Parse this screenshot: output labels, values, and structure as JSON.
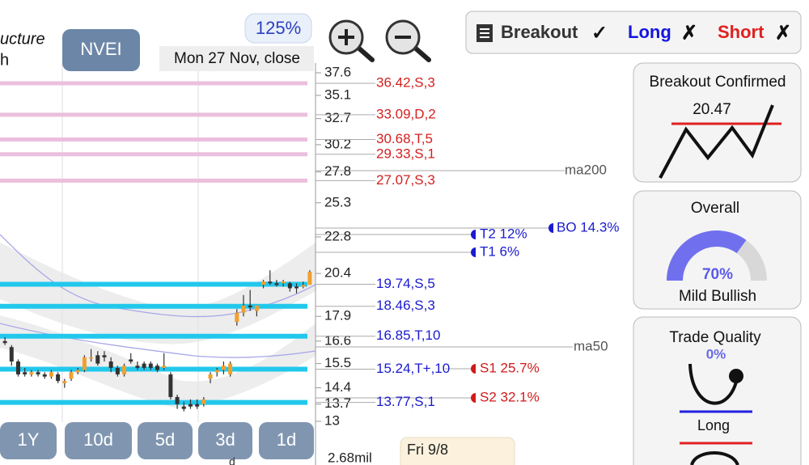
{
  "header": {
    "title_fragment": "ucture",
    "subtitle_fragment": "h",
    "symbol": "NVEI",
    "zoom": "125%",
    "date": "Mon 27 Nov, close"
  },
  "toolbar": {
    "breakout": "Breakout",
    "breakout_mark": "✓",
    "long": "Long",
    "long_mark": "✗",
    "short": "Short",
    "short_mark": "✗"
  },
  "price_axis": {
    "scale": "log",
    "ylim": [
      13,
      37.6
    ],
    "yticks": [
      37.6,
      35.1,
      32.7,
      30.2,
      27.8,
      25.3,
      22.8,
      20.4,
      17.9,
      16.6,
      15.5,
      14.4,
      13.7,
      13
    ]
  },
  "levels": [
    {
      "value": 36.42,
      "label": "36.42,S,3",
      "kind": "resistance"
    },
    {
      "value": 33.09,
      "label": "33.09,D,2",
      "kind": "resistance"
    },
    {
      "value": 30.68,
      "label": "30.68,T,5",
      "kind": "resistance"
    },
    {
      "value": 29.33,
      "label": "29.33,S,1",
      "kind": "resistance"
    },
    {
      "value": 27.07,
      "label": "27.07,S,3",
      "kind": "resistance"
    },
    {
      "value": 19.74,
      "label": "19.74,S,5",
      "kind": "support"
    },
    {
      "value": 18.46,
      "label": "18.46,S,3",
      "kind": "support"
    },
    {
      "value": 16.85,
      "label": "16.85,T,10",
      "kind": "support"
    },
    {
      "value": 15.24,
      "label": "15.24,T+,10",
      "kind": "support"
    },
    {
      "value": 13.77,
      "label": "13.77,S,1",
      "kind": "support"
    }
  ],
  "annotations": {
    "ma200": "ma200",
    "ma50": "ma50",
    "t2": "T2 12%",
    "t1": "T1 6%",
    "bo": "BO 14.3%",
    "s1": "S1 25.7%",
    "s2": "S2 32.1%"
  },
  "candles": [
    [
      16.6,
      16.8,
      16.4,
      16.5
    ],
    [
      16.3,
      16.4,
      15.4,
      15.6
    ],
    [
      15.6,
      15.7,
      14.9,
      15.0
    ],
    [
      15.1,
      15.3,
      14.9,
      15.0
    ],
    [
      15.0,
      15.2,
      14.9,
      15.1
    ],
    [
      15.1,
      15.2,
      14.9,
      15.0
    ],
    [
      15.0,
      15.1,
      14.8,
      14.9
    ],
    [
      14.9,
      15.2,
      14.8,
      15.1
    ],
    [
      15.0,
      15.1,
      14.6,
      14.7
    ],
    [
      14.6,
      14.8,
      14.4,
      14.7
    ],
    [
      14.8,
      15.2,
      14.7,
      15.1
    ],
    [
      15.1,
      15.3,
      15.0,
      15.2
    ],
    [
      15.2,
      15.9,
      15.1,
      15.8
    ],
    [
      15.8,
      16.2,
      15.6,
      15.8
    ],
    [
      15.9,
      16.1,
      15.4,
      15.5
    ],
    [
      15.9,
      16.1,
      15.6,
      15.8
    ],
    [
      15.6,
      15.8,
      15.1,
      15.3
    ],
    [
      15.3,
      15.4,
      14.9,
      15.0
    ],
    [
      15.0,
      15.5,
      14.9,
      15.4
    ],
    [
      15.7,
      16.0,
      15.5,
      15.6
    ],
    [
      15.4,
      15.6,
      15.2,
      15.3
    ],
    [
      15.5,
      15.6,
      15.2,
      15.3
    ],
    [
      15.5,
      15.6,
      15.2,
      15.3
    ],
    [
      15.4,
      15.5,
      15.1,
      15.2
    ],
    [
      15.3,
      16.0,
      15.2,
      15.4
    ],
    [
      15.0,
      15.1,
      13.9,
      14.0
    ],
    [
      14.0,
      14.1,
      13.5,
      13.7
    ],
    [
      13.6,
      13.8,
      13.4,
      13.5
    ],
    [
      13.7,
      13.9,
      13.5,
      13.6
    ],
    [
      13.7,
      13.9,
      13.5,
      13.6
    ],
    [
      13.7,
      14.0,
      13.6,
      13.9
    ],
    [
      14.8,
      15.1,
      14.6,
      15.0
    ],
    [
      15.1,
      15.3,
      14.9,
      15.2
    ],
    [
      15.2,
      15.6,
      15.0,
      15.4
    ],
    [
      15.0,
      15.6,
      14.9,
      15.5
    ],
    [
      17.6,
      18.3,
      17.4,
      18.1
    ],
    [
      18.1,
      19.1,
      17.9,
      18.5
    ],
    [
      18.5,
      19.4,
      18.2,
      18.4
    ],
    [
      18.2,
      18.5,
      17.9,
      18.5
    ],
    [
      19.7,
      20.0,
      19.5,
      19.9
    ],
    [
      19.9,
      20.6,
      19.7,
      19.8
    ],
    [
      19.8,
      20.0,
      19.6,
      19.7
    ],
    [
      19.8,
      20.0,
      19.6,
      19.9
    ],
    [
      19.8,
      19.9,
      19.3,
      19.5
    ],
    [
      19.6,
      19.8,
      19.2,
      19.5
    ],
    [
      19.6,
      19.9,
      19.5,
      19.7
    ],
    [
      19.7,
      20.6,
      19.7,
      20.5
    ]
  ],
  "periods": [
    "1Y",
    "10d",
    "5d",
    "3d",
    "1d"
  ],
  "footer": {
    "volume": "2.68mil",
    "tooltip_date": "Fri 9/8",
    "fragment": "d"
  },
  "panels": {
    "breakout": {
      "title": "Breakout Confirmed",
      "price": "20.47"
    },
    "overall": {
      "title": "Overall",
      "score": {
        "value": 70,
        "label": "70%"
      },
      "verdict": "Mild Bullish"
    },
    "quality": {
      "title": "Trade Quality",
      "score": "0%",
      "side": "Long"
    }
  }
}
